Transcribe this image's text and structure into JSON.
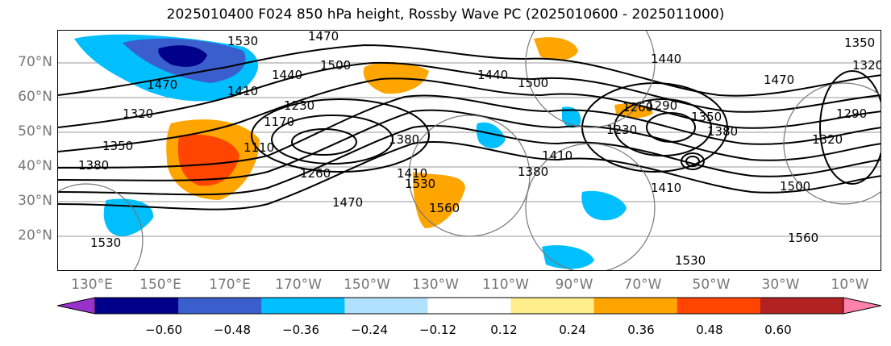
{
  "title": "2025010400 F024 850 hPa height, Rossby Wave PC (2025010600 - 2025011000)",
  "lat_labels": [
    "70°N",
    "60°N",
    "50°N",
    "40°N",
    "30°N",
    "20°N"
  ],
  "lon_labels": [
    "130°E",
    "150°E",
    "170°E",
    "170°W",
    "150°W",
    "130°W",
    "110°W",
    "90°W",
    "70°W",
    "50°W",
    "30°W",
    "10°W"
  ],
  "colorbar": {
    "tick_labels": [
      "−0.60",
      "−0.48",
      "−0.36",
      "−0.24",
      "−0.12",
      "0.12",
      "0.24",
      "0.36",
      "0.48",
      "0.60"
    ],
    "colors": [
      "#9932cc",
      "#00008b",
      "#3a5fcd",
      "#00bfff",
      "#b0e2ff",
      "#ffffff",
      "#ffec8b",
      "#ffa500",
      "#ff4500",
      "#b22222",
      "#ff82ab"
    ]
  },
  "contour_labels": [
    "1530",
    "1470",
    "1470",
    "1500",
    "1440",
    "1410",
    "1320",
    "1350",
    "1380",
    "1230",
    "1170",
    "1110",
    "1260",
    "1380",
    "1530",
    "1560",
    "1470",
    "1410",
    "1230",
    "1260",
    "1290",
    "1350",
    "1380",
    "1410",
    "1500",
    "1470",
    "1440",
    "1350",
    "1320",
    "1290",
    "1320",
    "1560",
    "1530",
    "1530",
    "1500",
    "1440",
    "1410",
    "1380"
  ],
  "palette": {
    "pos_light": "#ffec8b",
    "pos_mid": "#ffa500",
    "pos_strong": "#ff4500",
    "neg_light": "#b0e2ff",
    "neg_mid": "#00bfff",
    "neg_strong": "#3a5fcd",
    "neg_deep": "#00008b"
  }
}
